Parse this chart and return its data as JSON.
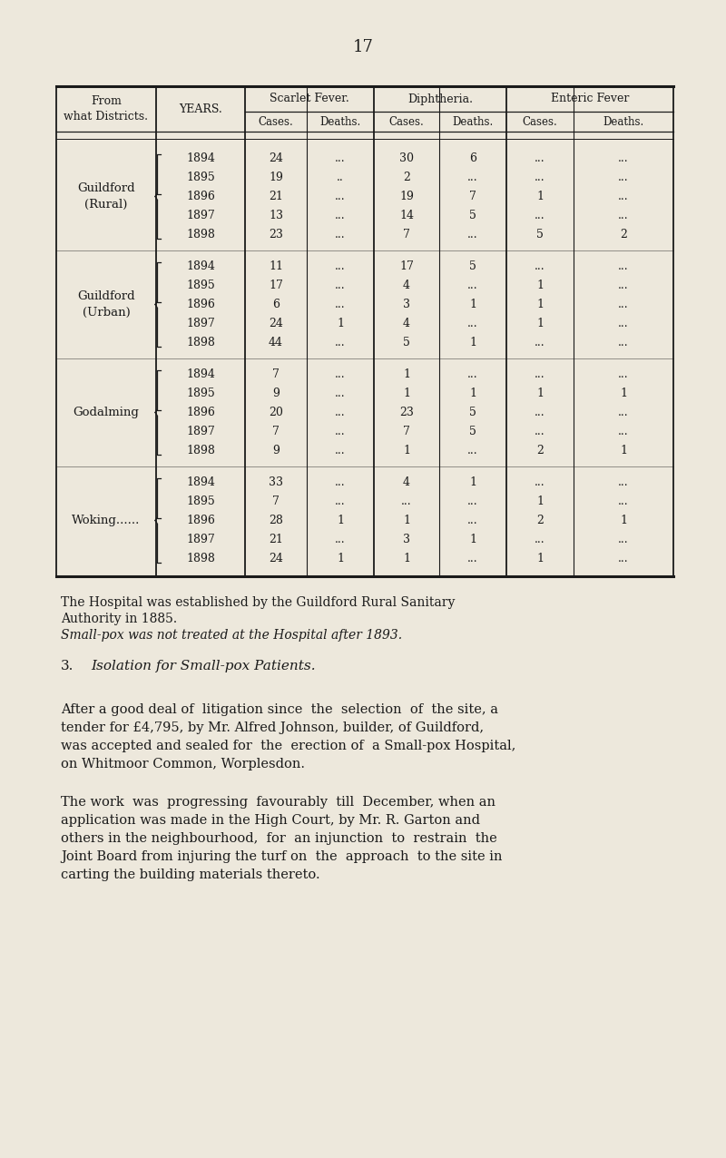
{
  "background_color": "#ede8dc",
  "page_number": "17",
  "table": {
    "districts": [
      {
        "name": "Guildford\n(Rural)",
        "rows": [
          [
            "1894",
            "24",
            "...",
            "30",
            "6",
            "...",
            "..."
          ],
          [
            "1895",
            "19",
            "..",
            "2",
            "...",
            "...",
            "..."
          ],
          [
            "1896",
            "21",
            "...",
            "19",
            "7",
            "1",
            "..."
          ],
          [
            "1897",
            "13",
            "...",
            "14",
            "5",
            "...",
            "..."
          ],
          [
            "1898",
            "23",
            "...",
            "7",
            "...",
            "5",
            "2"
          ]
        ]
      },
      {
        "name": "Guildford\n(Urban)",
        "rows": [
          [
            "1894",
            "11",
            "...",
            "17",
            "5",
            "...",
            "..."
          ],
          [
            "1895",
            "17",
            "...",
            "4",
            "...",
            "1",
            "..."
          ],
          [
            "1896",
            "6",
            "...",
            "3",
            "1",
            "1",
            "..."
          ],
          [
            "1897",
            "24",
            "1",
            "4",
            "...",
            "1",
            "..."
          ],
          [
            "1898",
            "44",
            "...",
            "5",
            "1",
            "...",
            "..."
          ]
        ]
      },
      {
        "name": "Godalming",
        "rows": [
          [
            "1894",
            "7",
            "...",
            "1",
            "...",
            "...",
            "..."
          ],
          [
            "1895",
            "9",
            "...",
            "1",
            "1",
            "1",
            "1"
          ],
          [
            "1896",
            "20",
            "...",
            "23",
            "5",
            "...",
            "..."
          ],
          [
            "1897",
            "7",
            "...",
            "7",
            "5",
            "...",
            "..."
          ],
          [
            "1898",
            "9",
            "...",
            "1",
            "...",
            "2",
            "1"
          ]
        ]
      },
      {
        "name": "Woking......",
        "rows": [
          [
            "1894",
            "33",
            "...",
            "4",
            "1",
            "...",
            "..."
          ],
          [
            "1895",
            "7",
            "...",
            "...",
            "...",
            "1",
            "..."
          ],
          [
            "1896",
            "28",
            "1",
            "1",
            "...",
            "2",
            "1"
          ],
          [
            "1897",
            "21",
            "...",
            "3",
            "1",
            "...",
            "..."
          ],
          [
            "1898",
            "24",
            "1",
            "1",
            "...",
            "1",
            "..."
          ]
        ]
      }
    ]
  },
  "footnote1": "The Hospital was established by the Guildford Rural Sanitary",
  "footnote2": "Authority in 1885.",
  "footnote3": "Small-pox was not treated at the Hospital after 1893.",
  "section_num": "3.",
  "section_title": "Isolation for Small-pox Patients.",
  "para1_lines": [
    "After a good deal of  litigation since  the  selection  of  the site, a",
    "tender for £4,795, by Mr. Alfred Johnson, builder, of Guildford,",
    "was accepted and sealed for  the  erection of  a Small-pox Hospital,",
    "on Whitmoor Common, Worplesdon."
  ],
  "para2_lines": [
    "The work  was  progressing  favourably  till  December, when an",
    "application was made in the High Court, by Mr. R. Garton and",
    "others in the neighbourhood,  for  an injunction  to  restrain  the",
    "Joint Board from injuring the turf on  the  approach  to the site in",
    "carting the building materials thereto."
  ]
}
